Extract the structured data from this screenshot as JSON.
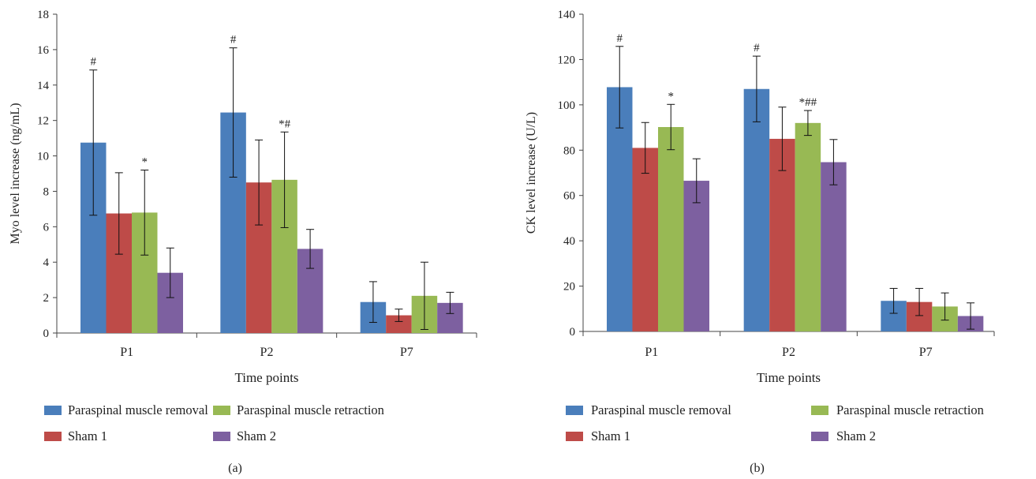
{
  "figures": [
    {
      "caption": "(a)",
      "chart_data": {
        "type": "bar",
        "categories": [
          "P1",
          "P2",
          "P7"
        ],
        "xlabel": "Time points",
        "ylabel": "Myo level increase (ng/mL)",
        "ylim": [
          0,
          18
        ],
        "yticks": [
          "0",
          "2",
          "4",
          "6",
          "8",
          "10",
          "12",
          "14",
          "16",
          "18"
        ],
        "grid": false,
        "legend_position": "bottom",
        "series": [
          {
            "name": "Paraspinal muscle removal",
            "color": "#4a7ebb",
            "values": [
              10.75,
              12.45,
              1.75
            ],
            "errors": [
              4.1,
              3.65,
              1.15
            ],
            "annotations": [
              "#",
              "#",
              ""
            ]
          },
          {
            "name": "Sham 1",
            "color": "#be4b48",
            "values": [
              6.75,
              8.5,
              1.0
            ],
            "errors": [
              2.3,
              2.4,
              0.35
            ],
            "annotations": [
              "",
              "",
              ""
            ]
          },
          {
            "name": "Paraspinal muscle retraction",
            "color": "#98b954",
            "values": [
              6.8,
              8.65,
              2.1
            ],
            "errors": [
              2.4,
              2.7,
              1.9
            ],
            "annotations": [
              "*",
              "*#",
              ""
            ]
          },
          {
            "name": "Sham 2",
            "color": "#7d60a0",
            "values": [
              3.4,
              4.75,
              1.7
            ],
            "errors": [
              1.4,
              1.1,
              0.6
            ],
            "annotations": [
              "",
              "",
              ""
            ]
          }
        ]
      }
    },
    {
      "caption": "(b)",
      "chart_data": {
        "type": "bar",
        "categories": [
          "P1",
          "P2",
          "P7"
        ],
        "xlabel": "Time points",
        "ylabel": "CK level increase (U/L)",
        "ylim": [
          0,
          140
        ],
        "yticks": [
          "0",
          "20",
          "40",
          "60",
          "80",
          "100",
          "120",
          "140"
        ],
        "grid": false,
        "legend_position": "bottom",
        "series": [
          {
            "name": "Paraspinal muscle removal",
            "color": "#4a7ebb",
            "values": [
              107.8,
              107,
              13.5
            ],
            "errors": [
              18,
              14.5,
              5.5
            ],
            "annotations": [
              "#",
              "#",
              ""
            ]
          },
          {
            "name": "Sham 1",
            "color": "#be4b48",
            "values": [
              81,
              85,
              13
            ],
            "errors": [
              11.2,
              14,
              6
            ],
            "annotations": [
              "",
              "",
              ""
            ]
          },
          {
            "name": "Paraspinal muscle retraction",
            "color": "#98b954",
            "values": [
              90.2,
              92,
              11
            ],
            "errors": [
              10,
              5.5,
              6
            ],
            "annotations": [
              "*",
              "*##",
              ""
            ]
          },
          {
            "name": "Sham 2",
            "color": "#7d60a0",
            "values": [
              66.5,
              74.7,
              6.8
            ],
            "errors": [
              9.7,
              10,
              5.8
            ],
            "annotations": [
              "",
              "",
              ""
            ]
          }
        ]
      }
    }
  ]
}
